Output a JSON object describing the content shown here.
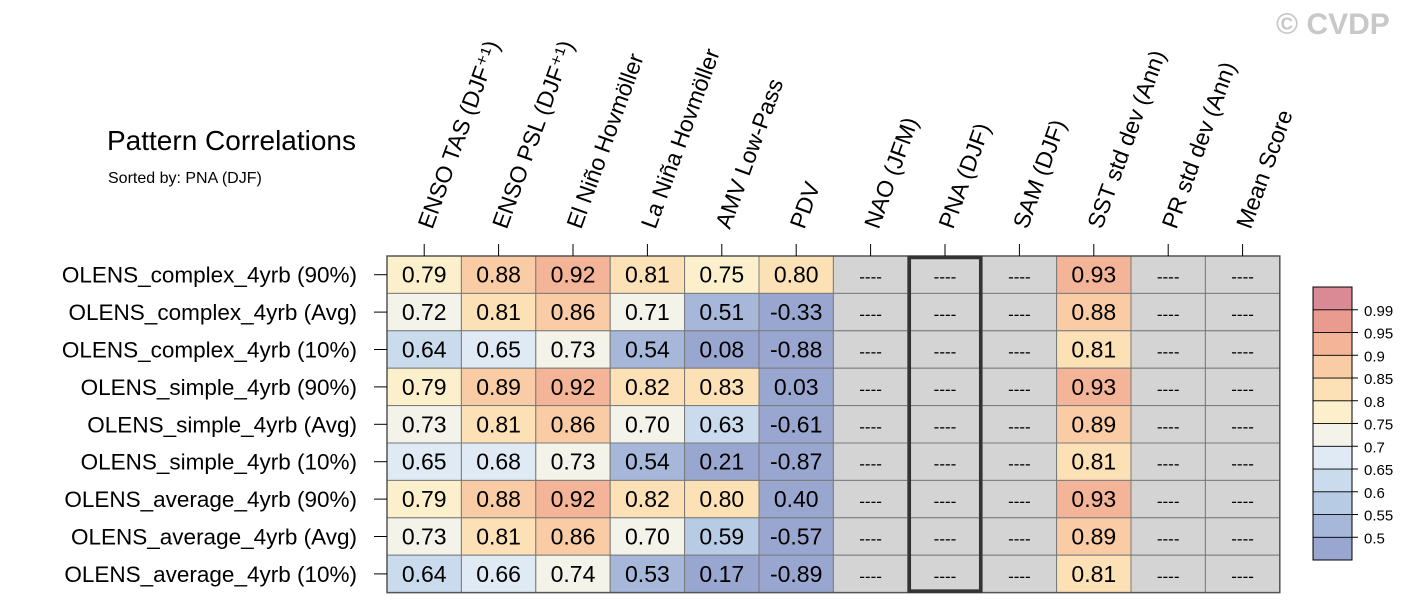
{
  "watermark": "© CVDP",
  "title": "Pattern Correlations",
  "subtitle": "Sorted by: PNA (DJF)",
  "colors": {
    "missing_cell": "#d4d4d4",
    "grid_line": "#7a7a7a",
    "highlight_border": "#333333",
    "colorbar": [
      "#99a6cf",
      "#a6b7d9",
      "#b7cbe4",
      "#cadbed",
      "#dfeaf4",
      "#f3f3ea",
      "#fcf0cc",
      "#fce0b6",
      "#f9cca5",
      "#f4b497",
      "#e89b8e",
      "#d98a94"
    ]
  },
  "chart_data": {
    "type": "heatmap",
    "title": "Pattern Correlations",
    "subtitle": "Sorted by: PNA (DJF)",
    "columns": [
      "ENSO TAS (DJF⁺¹)",
      "ENSO PSL (DJF⁺¹)",
      "El Niño Hovmöller",
      "La Niña Hovmöller",
      "AMV Low-Pass",
      "PDV",
      "NAO (JFM)",
      "PNA (DJF)",
      "SAM (DJF)",
      "SST std dev (Ann)",
      "PR std dev (Ann)",
      "Mean Score"
    ],
    "rows": [
      "OLENS_complex_4yrb (90%)",
      "OLENS_complex_4yrb (Avg)",
      "OLENS_complex_4yrb (10%)",
      "OLENS_simple_4yrb (90%)",
      "OLENS_simple_4yrb (Avg)",
      "OLENS_simple_4yrb (10%)",
      "OLENS_average_4yrb (90%)",
      "OLENS_average_4yrb (Avg)",
      "OLENS_average_4yrb (10%)"
    ],
    "values": [
      [
        0.79,
        0.88,
        0.92,
        0.81,
        0.75,
        0.8,
        null,
        null,
        null,
        0.93,
        null,
        null
      ],
      [
        0.72,
        0.81,
        0.86,
        0.71,
        0.51,
        -0.33,
        null,
        null,
        null,
        0.88,
        null,
        null
      ],
      [
        0.64,
        0.65,
        0.73,
        0.54,
        0.08,
        -0.88,
        null,
        null,
        null,
        0.81,
        null,
        null
      ],
      [
        0.79,
        0.89,
        0.92,
        0.82,
        0.83,
        0.03,
        null,
        null,
        null,
        0.93,
        null,
        null
      ],
      [
        0.73,
        0.81,
        0.86,
        0.7,
        0.63,
        -0.61,
        null,
        null,
        null,
        0.89,
        null,
        null
      ],
      [
        0.65,
        0.68,
        0.73,
        0.54,
        0.21,
        -0.87,
        null,
        null,
        null,
        0.81,
        null,
        null
      ],
      [
        0.79,
        0.88,
        0.92,
        0.82,
        0.8,
        0.4,
        null,
        null,
        null,
        0.93,
        null,
        null
      ],
      [
        0.73,
        0.81,
        0.86,
        0.7,
        0.59,
        -0.57,
        null,
        null,
        null,
        0.89,
        null,
        null
      ],
      [
        0.64,
        0.66,
        0.74,
        0.53,
        0.17,
        -0.89,
        null,
        null,
        null,
        0.81,
        null,
        null
      ]
    ],
    "missing_label": "----",
    "highlighted_column": "PNA (DJF)",
    "colorbar": {
      "levels": [
        0.5,
        0.55,
        0.6,
        0.65,
        0.7,
        0.75,
        0.8,
        0.85,
        0.9,
        0.95,
        0.99
      ],
      "labels": [
        "0.5",
        "0.55",
        "0.6",
        "0.65",
        "0.7",
        "0.75",
        "0.8",
        "0.85",
        "0.9",
        "0.95",
        "0.99"
      ],
      "placement": "right"
    }
  }
}
